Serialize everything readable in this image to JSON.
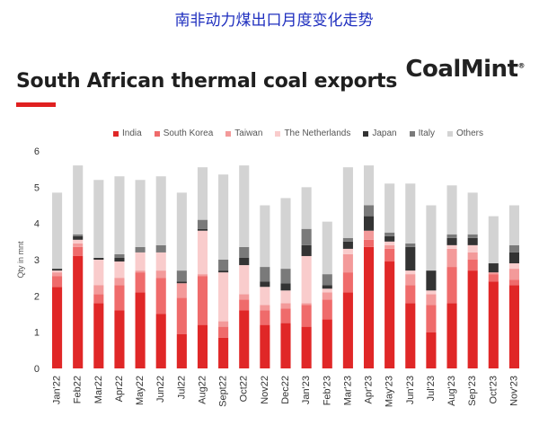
{
  "caption": "南非动力煤出口月度变化走势",
  "card": {
    "title": "South African thermal coal exports",
    "brand": "CoalMint",
    "brand_mark": "®"
  },
  "colors": {
    "India": "#e02727",
    "South Korea": "#ef6b6b",
    "Taiwan": "#f39a9a",
    "The Netherlands": "#f9cccc",
    "Japan": "#333333",
    "Italy": "#7a7a7a",
    "Others": "#d3d3d3"
  },
  "chart_data": {
    "type": "bar",
    "stacked": true,
    "ylabel": "Qty in mnt",
    "ylim": [
      0,
      6
    ],
    "yticks": [
      0,
      1,
      2,
      3,
      4,
      5,
      6
    ],
    "grid": false,
    "legend_position": "top",
    "categories": [
      "Jan'22",
      "Feb22",
      "Mar22",
      "Apr22",
      "May22",
      "Jun22",
      "Jul22",
      "Aug22",
      "Sept22",
      "Oct22",
      "Nov22",
      "Dec22",
      "Jan'23",
      "Feb'23",
      "Mar'23",
      "Apr'23",
      "May'23",
      "Jun'23",
      "Jul'23",
      "Aug'23",
      "Sep'23",
      "Oct'23",
      "Nov'23"
    ],
    "series": [
      {
        "name": "India",
        "values": [
          2.25,
          3.1,
          1.8,
          1.6,
          2.1,
          1.5,
          0.95,
          1.2,
          0.85,
          1.6,
          1.2,
          1.25,
          1.15,
          1.35,
          2.1,
          3.35,
          2.95,
          1.8,
          1.0,
          1.8,
          2.7,
          2.4,
          2.3
        ]
      },
      {
        "name": "South Korea",
        "values": [
          0.3,
          0.25,
          0.25,
          0.7,
          0.55,
          1.0,
          1.0,
          1.35,
          0.3,
          0.3,
          0.4,
          0.4,
          0.6,
          0.55,
          0.55,
          0.2,
          0.35,
          0.5,
          0.75,
          1.0,
          0.3,
          0.2,
          0.15
        ]
      },
      {
        "name": "Taiwan",
        "values": [
          0.1,
          0.1,
          0.25,
          0.2,
          0.05,
          0.2,
          0.4,
          0.05,
          0.15,
          0.15,
          0.15,
          0.15,
          0.05,
          0.2,
          0.5,
          0.25,
          0.1,
          0.3,
          0.3,
          0.5,
          0.2,
          0.05,
          0.3
        ]
      },
      {
        "name": "The Netherlands",
        "values": [
          0.05,
          0.1,
          0.7,
          0.45,
          0.5,
          0.5,
          0.0,
          1.2,
          1.35,
          0.8,
          0.5,
          0.35,
          1.3,
          0.1,
          0.15,
          0.0,
          0.1,
          0.1,
          0.1,
          0.1,
          0.2,
          0.0,
          0.15
        ]
      },
      {
        "name": "Japan",
        "values": [
          0.05,
          0.1,
          0.05,
          0.1,
          0.0,
          0.0,
          0.05,
          0.05,
          0.05,
          0.2,
          0.15,
          0.2,
          0.3,
          0.1,
          0.2,
          0.4,
          0.15,
          0.65,
          0.55,
          0.2,
          0.2,
          0.25,
          0.3
        ]
      },
      {
        "name": "Italy",
        "values": [
          0.0,
          0.05,
          0.0,
          0.1,
          0.15,
          0.2,
          0.3,
          0.25,
          0.3,
          0.3,
          0.4,
          0.4,
          0.45,
          0.3,
          0.1,
          0.3,
          0.1,
          0.1,
          0.0,
          0.1,
          0.1,
          0.0,
          0.2
        ]
      },
      {
        "name": "Others",
        "values": [
          2.1,
          1.9,
          2.15,
          2.15,
          1.85,
          1.9,
          2.15,
          1.45,
          2.35,
          2.25,
          1.7,
          1.95,
          1.15,
          1.45,
          1.95,
          1.1,
          1.35,
          1.65,
          1.8,
          1.35,
          1.15,
          1.3,
          1.1
        ]
      }
    ]
  }
}
